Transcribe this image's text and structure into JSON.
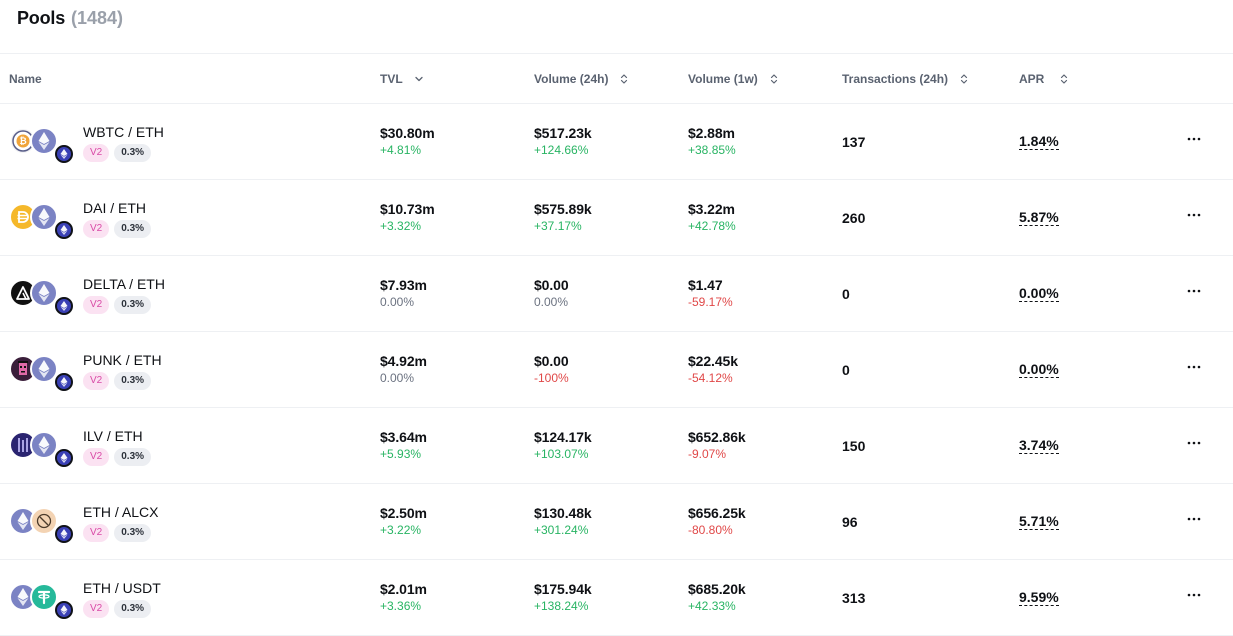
{
  "header": {
    "title": "Pools",
    "count": "(1484)"
  },
  "columns": {
    "name": "Name",
    "tvl": "TVL",
    "volume_24h": "Volume (24h)",
    "volume_1w": "Volume (1w)",
    "transactions": "Transactions (24h)",
    "apr": "APR"
  },
  "rows": [
    {
      "pair": "WBTC / ETH",
      "version": "V2",
      "fee": "0.3%",
      "tvl": "$30.80m",
      "tvl_change": "+4.81%",
      "vol24": "$517.23k",
      "vol24_change": "+124.66%",
      "vol1w": "$2.88m",
      "vol1w_change": "+38.85%",
      "tx": "137",
      "apr": "1.84%",
      "token0_icon": "wbtc-icon",
      "token1_icon": "eth-icon"
    },
    {
      "pair": "DAI / ETH",
      "version": "V2",
      "fee": "0.3%",
      "tvl": "$10.73m",
      "tvl_change": "+3.32%",
      "vol24": "$575.89k",
      "vol24_change": "+37.17%",
      "vol1w": "$3.22m",
      "vol1w_change": "+42.78%",
      "tx": "260",
      "apr": "5.87%",
      "token0_icon": "dai-icon",
      "token1_icon": "eth-icon"
    },
    {
      "pair": "DELTA / ETH",
      "version": "V2",
      "fee": "0.3%",
      "tvl": "$7.93m",
      "tvl_change": "0.00%",
      "vol24": "$0.00",
      "vol24_change": "0.00%",
      "vol1w": "$1.47",
      "vol1w_change": "-59.17%",
      "tx": "0",
      "apr": "0.00%",
      "token0_icon": "delta-icon",
      "token1_icon": "eth-icon"
    },
    {
      "pair": "PUNK / ETH",
      "version": "V2",
      "fee": "0.3%",
      "tvl": "$4.92m",
      "tvl_change": "0.00%",
      "vol24": "$0.00",
      "vol24_change": "-100%",
      "vol1w": "$22.45k",
      "vol1w_change": "-54.12%",
      "tx": "0",
      "apr": "0.00%",
      "token0_icon": "punk-icon",
      "token1_icon": "eth-icon"
    },
    {
      "pair": "ILV / ETH",
      "version": "V2",
      "fee": "0.3%",
      "tvl": "$3.64m",
      "tvl_change": "+5.93%",
      "vol24": "$124.17k",
      "vol24_change": "+103.07%",
      "vol1w": "$652.86k",
      "vol1w_change": "-9.07%",
      "tx": "150",
      "apr": "3.74%",
      "token0_icon": "ilv-icon",
      "token1_icon": "eth-icon"
    },
    {
      "pair": "ETH / ALCX",
      "version": "V2",
      "fee": "0.3%",
      "tvl": "$2.50m",
      "tvl_change": "+3.22%",
      "vol24": "$130.48k",
      "vol24_change": "+301.24%",
      "vol1w": "$656.25k",
      "vol1w_change": "-80.80%",
      "tx": "96",
      "apr": "5.71%",
      "token0_icon": "eth-icon",
      "token1_icon": "alcx-icon"
    },
    {
      "pair": "ETH / USDT",
      "version": "V2",
      "fee": "0.3%",
      "tvl": "$2.01m",
      "tvl_change": "+3.36%",
      "vol24": "$175.94k",
      "vol24_change": "+138.24%",
      "vol1w": "$685.20k",
      "vol1w_change": "+42.33%",
      "tx": "313",
      "apr": "9.59%",
      "token0_icon": "eth-icon",
      "token1_icon": "usdt-icon"
    }
  ],
  "colors": {
    "positive": "#28b463",
    "negative": "#e04848",
    "neutral": "#6b7280",
    "chain": "#3a40b5"
  }
}
